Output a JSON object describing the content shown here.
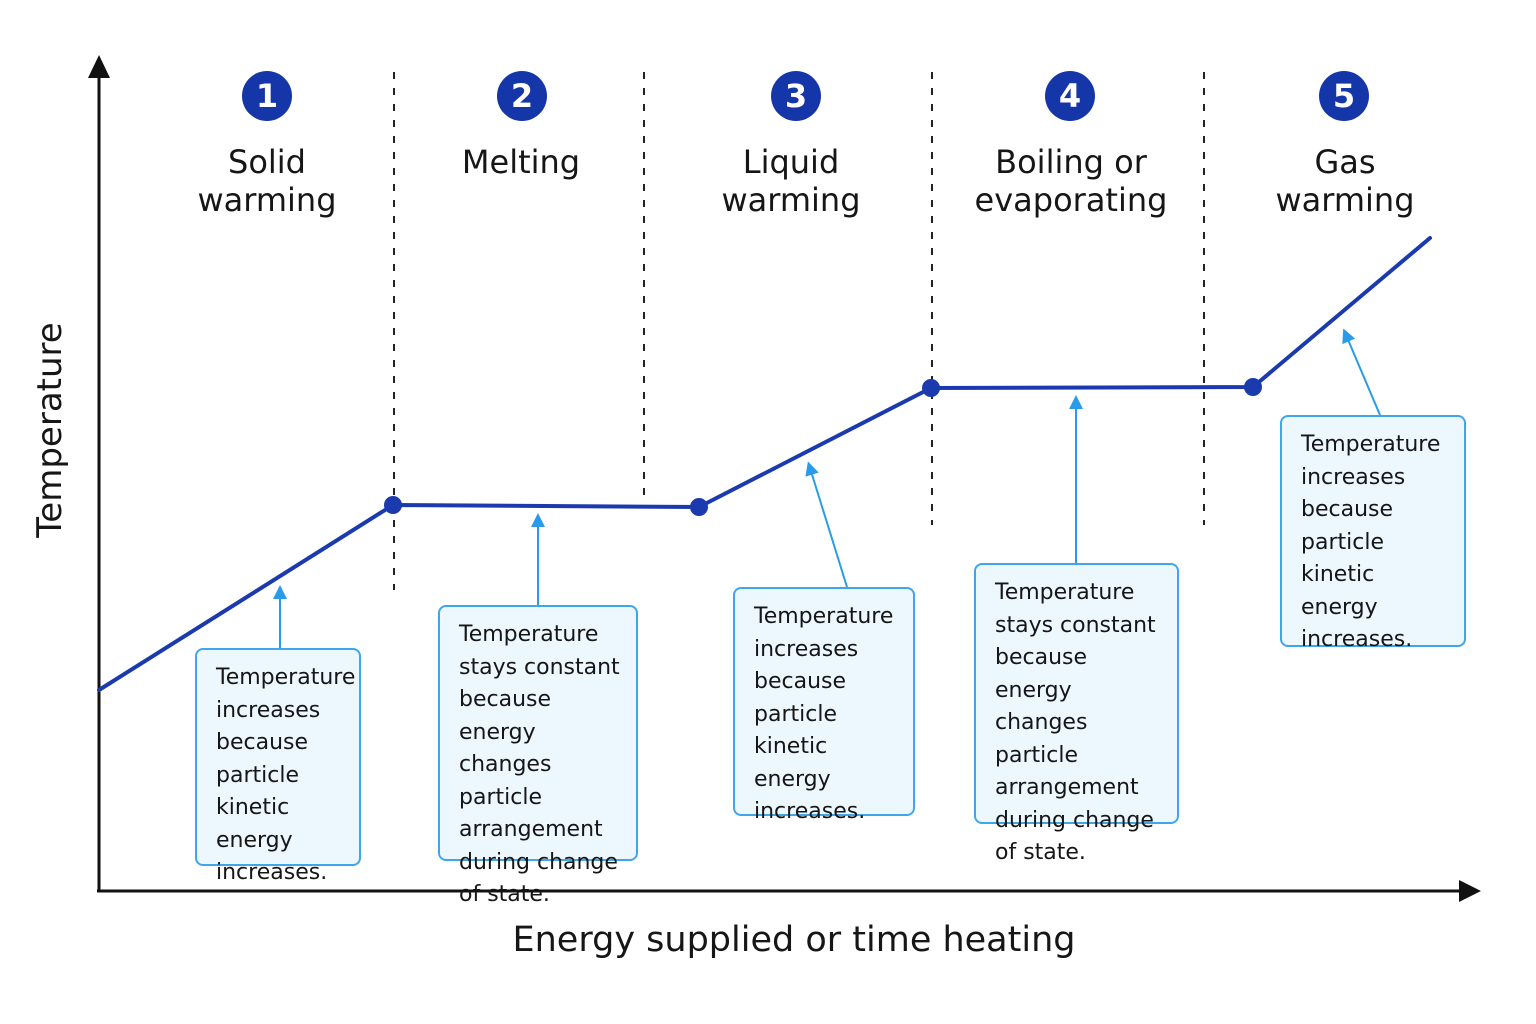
{
  "axes": {
    "y_label": "Temperature",
    "x_label": "Energy supplied or time heating"
  },
  "stages": [
    {
      "number": "1",
      "title": "Solid\nwarming"
    },
    {
      "number": "2",
      "title": "Melting"
    },
    {
      "number": "3",
      "title": "Liquid\nwarming"
    },
    {
      "number": "4",
      "title": "Boiling or\nevaporating"
    },
    {
      "number": "5",
      "title": "Gas\nwarming"
    }
  ],
  "notes": [
    {
      "text": "Temperature\nincreases\nbecause\nparticle kinetic\nenergy\nincreases."
    },
    {
      "text": "Temperature\nstays constant\nbecause energy\nchanges particle\narrangement\nduring change\nof state."
    },
    {
      "text": "Temperature\nincreases\nbecause\nparticle kinetic\nenergy\nincreases."
    },
    {
      "text": "Temperature\nstays constant\nbecause energy\nchanges particle\narrangement\nduring change\nof state."
    },
    {
      "text": "Temperature\nincreases\nbecause\nparticle kinetic\nenergy\nincreases."
    }
  ],
  "colors": {
    "curve": "#1a3aad",
    "badge": "#1536a8",
    "note_border": "#3fa6ea",
    "note_fill": "#edf8fe",
    "pointer": "#2a9be8",
    "axis": "#111111"
  }
}
